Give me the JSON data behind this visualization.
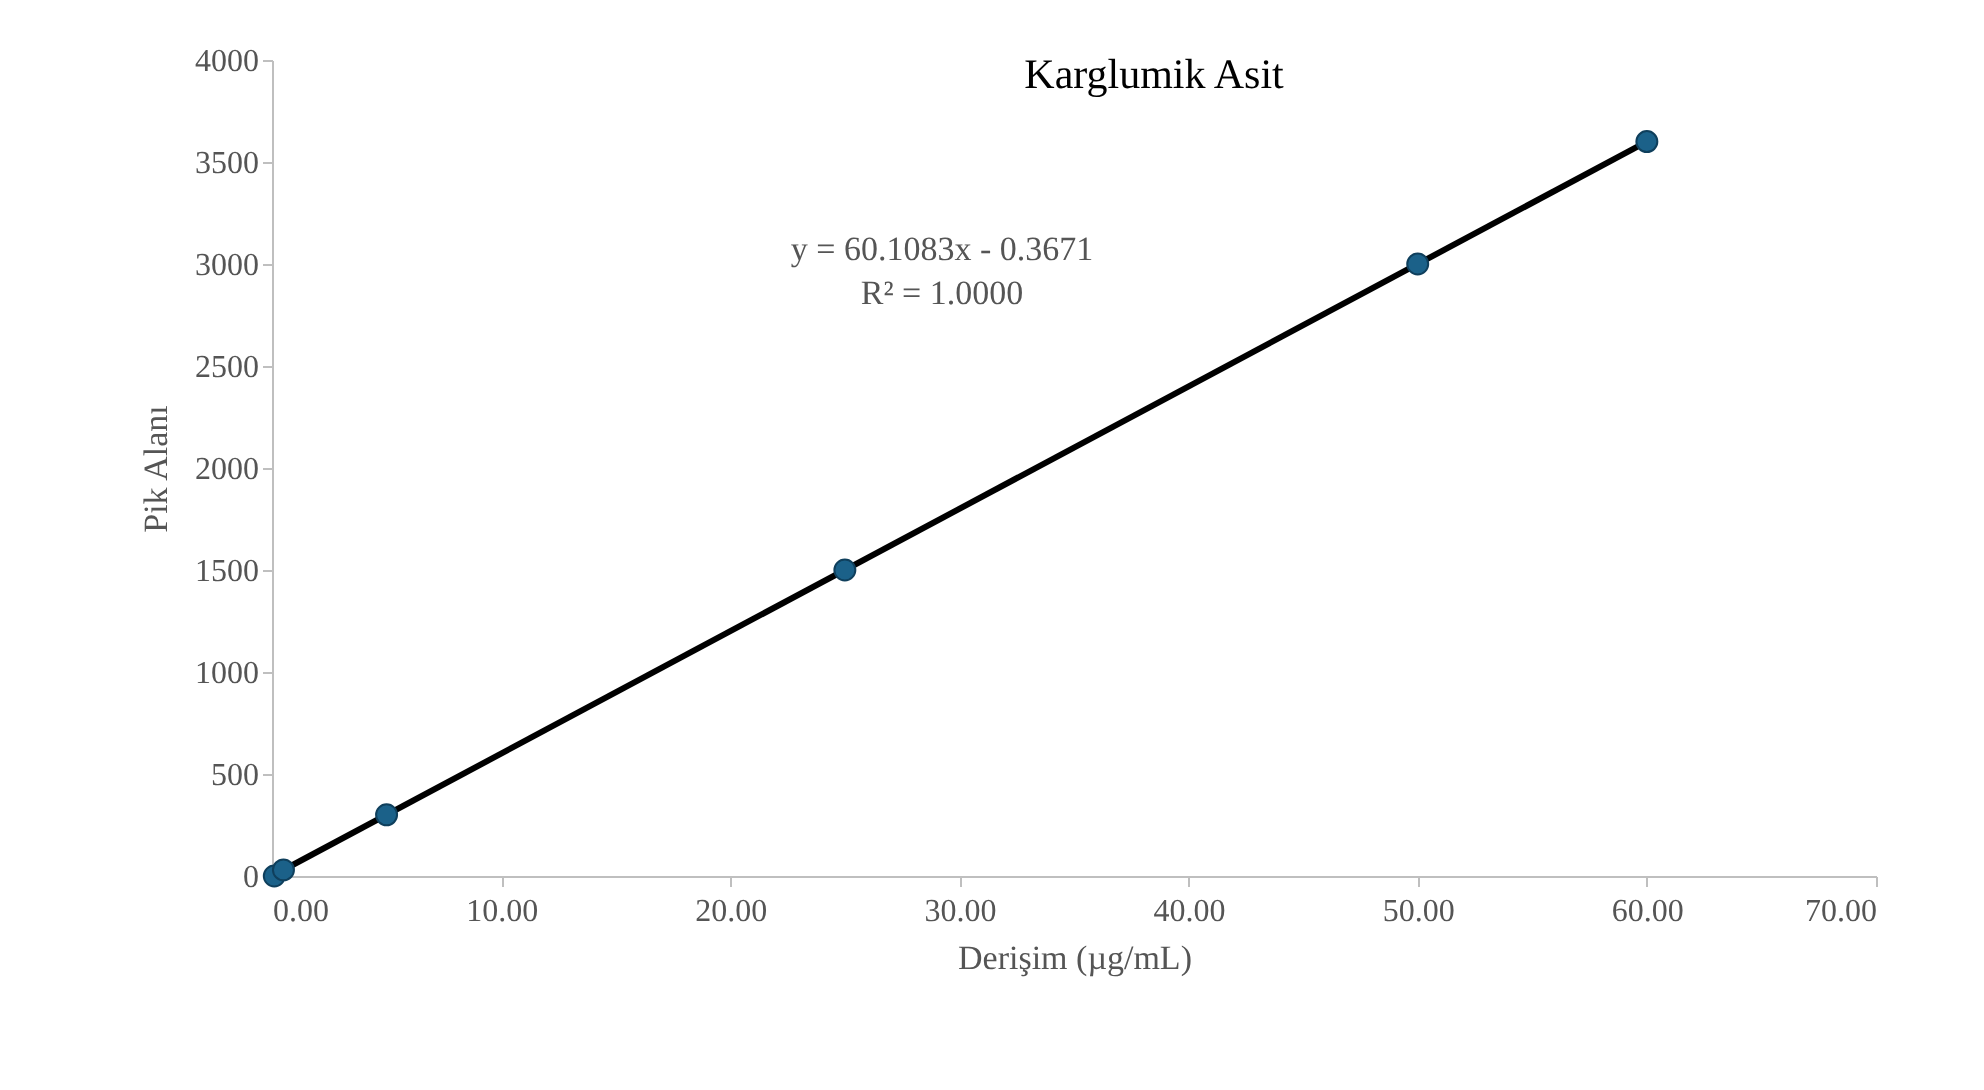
{
  "chart_data": {
    "type": "scatter",
    "title": "Karglumik Asit",
    "xlabel": "Derişim (µg/mL)",
    "ylabel": "Pik Alanı",
    "x": [
      0.1,
      0.5,
      5,
      25,
      50,
      60
    ],
    "series": [
      {
        "color": "#1b6189",
        "values": [
          0,
          30,
          300,
          1500,
          3000,
          3600
        ],
        "marker": "circle"
      },
      {
        "type": "line",
        "color": "#000000",
        "x": [
          0,
          60
        ],
        "values": [
          0,
          3600
        ],
        "line_style": "solid"
      }
    ],
    "annotations": [
      "y = 60.1083x - 0.3671",
      "R² = 1.0000"
    ],
    "xlim": [
      0,
      70
    ],
    "xticks": [
      {
        "value": 0,
        "label": "0.00"
      },
      {
        "value": 10,
        "label": "10.00"
      },
      {
        "value": 20,
        "label": "20.00"
      },
      {
        "value": 30,
        "label": "30.00"
      },
      {
        "value": 40,
        "label": "40.00"
      },
      {
        "value": 50,
        "label": "50.00"
      },
      {
        "value": 60,
        "label": "60.00"
      },
      {
        "value": 70,
        "label": "70.00"
      }
    ],
    "ylim": [
      0,
      4000
    ],
    "yticks": [
      0,
      500,
      1000,
      1500,
      2000,
      2500,
      3000,
      3500,
      4000
    ],
    "grid": false
  }
}
